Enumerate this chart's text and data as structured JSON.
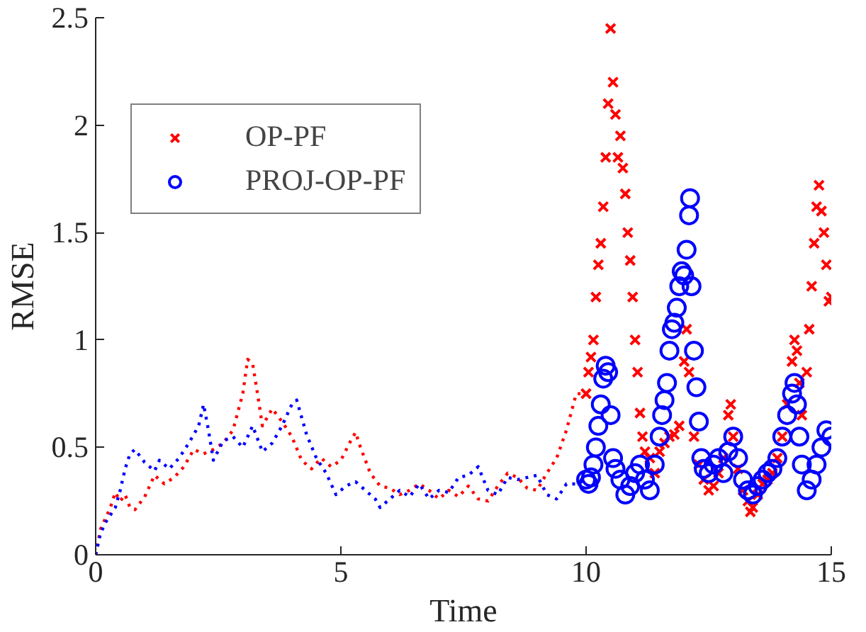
{
  "chart_data": {
    "type": "scatter",
    "xlabel": "Time",
    "ylabel": "RMSE",
    "xlim": [
      0,
      15
    ],
    "ylim": [
      0,
      2.5
    ],
    "xticks": [
      0,
      5,
      10,
      15
    ],
    "yticks": [
      0,
      0.5,
      1,
      1.5,
      2,
      2.5
    ],
    "grid": false,
    "legend": "top left",
    "series": [
      {
        "type": "line",
        "line_style": "dotted",
        "color": "#ff0000",
        "x": [
          0,
          0.1,
          0.2,
          0.3,
          0.4,
          0.5,
          0.6,
          0.7,
          0.8,
          1.0,
          1.2,
          1.4,
          1.6,
          1.8,
          2.0,
          2.2,
          2.4,
          2.6,
          2.8,
          3.0,
          3.1,
          3.2,
          3.3,
          3.4,
          3.6,
          3.8,
          4.0,
          4.2,
          4.4,
          4.6,
          4.8,
          5.0,
          5.2,
          5.3,
          5.4,
          5.6,
          5.8,
          6.0,
          6.2,
          6.4,
          6.6,
          6.8,
          7.0,
          7.2,
          7.4,
          7.6,
          7.8,
          8.0,
          8.2,
          8.4,
          8.6,
          8.8,
          9.0,
          9.2,
          9.4,
          9.6,
          9.8,
          10.0
        ],
        "values": [
          0,
          0.12,
          0.17,
          0.22,
          0.29,
          0.25,
          0.28,
          0.22,
          0.21,
          0.27,
          0.37,
          0.33,
          0.36,
          0.41,
          0.49,
          0.47,
          0.49,
          0.52,
          0.58,
          0.75,
          0.91,
          0.89,
          0.75,
          0.6,
          0.68,
          0.62,
          0.55,
          0.44,
          0.4,
          0.45,
          0.41,
          0.44,
          0.53,
          0.57,
          0.5,
          0.38,
          0.32,
          0.31,
          0.28,
          0.3,
          0.33,
          0.3,
          0.26,
          0.3,
          0.27,
          0.32,
          0.26,
          0.25,
          0.32,
          0.38,
          0.36,
          0.31,
          0.3,
          0.38,
          0.45,
          0.58,
          0.75,
          0.75
        ]
      },
      {
        "type": "line",
        "line_style": "dotted",
        "color": "#0000ff",
        "x": [
          0,
          0.1,
          0.2,
          0.4,
          0.5,
          0.6,
          0.7,
          0.8,
          1.0,
          1.2,
          1.3,
          1.5,
          1.7,
          1.9,
          2.1,
          2.2,
          2.3,
          2.4,
          2.6,
          2.8,
          3.0,
          3.2,
          3.4,
          3.6,
          3.8,
          4.0,
          4.1,
          4.3,
          4.5,
          4.7,
          4.9,
          5.1,
          5.3,
          5.5,
          5.7,
          5.8,
          6.0,
          6.2,
          6.4,
          6.6,
          6.8,
          7.0,
          7.2,
          7.4,
          7.6,
          7.8,
          8.0,
          8.2,
          8.4,
          8.6,
          8.8,
          9.0,
          9.2,
          9.4,
          9.6,
          9.8,
          10.0
        ],
        "values": [
          0,
          0.1,
          0.15,
          0.22,
          0.3,
          0.4,
          0.47,
          0.49,
          0.43,
          0.39,
          0.44,
          0.4,
          0.45,
          0.52,
          0.6,
          0.7,
          0.58,
          0.44,
          0.53,
          0.55,
          0.5,
          0.6,
          0.48,
          0.52,
          0.6,
          0.7,
          0.72,
          0.56,
          0.45,
          0.38,
          0.28,
          0.32,
          0.34,
          0.3,
          0.26,
          0.22,
          0.26,
          0.3,
          0.27,
          0.33,
          0.26,
          0.3,
          0.29,
          0.36,
          0.37,
          0.41,
          0.3,
          0.28,
          0.36,
          0.35,
          0.36,
          0.37,
          0.28,
          0.26,
          0.33,
          0.33,
          0.35
        ]
      },
      {
        "name": "OP-PF",
        "marker": "cross",
        "color": "#ff0000",
        "x": [
          10.0,
          10.05,
          10.1,
          10.15,
          10.2,
          10.25,
          10.3,
          10.35,
          10.4,
          10.45,
          10.5,
          10.55,
          10.6,
          10.65,
          10.7,
          10.75,
          10.8,
          10.85,
          10.9,
          10.95,
          11.0,
          11.05,
          11.1,
          11.15,
          11.2,
          11.3,
          11.4,
          11.5,
          11.6,
          11.7,
          11.8,
          11.9,
          12.0,
          12.05,
          12.1,
          12.2,
          12.3,
          12.4,
          12.5,
          12.6,
          12.7,
          12.8,
          12.9,
          12.95,
          13.0,
          13.1,
          13.2,
          13.3,
          13.35,
          13.4,
          13.5,
          13.6,
          13.7,
          13.8,
          13.9,
          14.0,
          14.1,
          14.2,
          14.25,
          14.3,
          14.35,
          14.4,
          14.5,
          14.55,
          14.6,
          14.65,
          14.7,
          14.75,
          14.8,
          14.85,
          14.9,
          14.95,
          15.0
        ],
        "values": [
          0.75,
          0.85,
          0.92,
          1.0,
          1.2,
          1.35,
          1.45,
          1.62,
          1.85,
          2.1,
          2.45,
          2.2,
          2.05,
          1.85,
          1.95,
          1.8,
          1.68,
          1.5,
          1.37,
          1.2,
          1.0,
          0.85,
          0.66,
          0.55,
          0.48,
          0.45,
          0.38,
          0.48,
          0.52,
          0.55,
          0.56,
          0.6,
          0.9,
          1.05,
          0.85,
          0.55,
          0.42,
          0.35,
          0.3,
          0.32,
          0.38,
          0.45,
          0.65,
          0.7,
          0.55,
          0.4,
          0.3,
          0.25,
          0.2,
          0.22,
          0.28,
          0.33,
          0.35,
          0.38,
          0.45,
          0.55,
          0.7,
          0.9,
          1.0,
          0.95,
          0.8,
          0.65,
          0.85,
          1.05,
          1.25,
          1.45,
          1.62,
          1.72,
          1.6,
          1.5,
          1.35,
          1.18,
          1.2
        ]
      },
      {
        "name": "PROJ-OP-PF",
        "marker": "circle",
        "color": "#0000ff",
        "x": [
          10.0,
          10.05,
          10.1,
          10.15,
          10.2,
          10.25,
          10.3,
          10.35,
          10.4,
          10.45,
          10.5,
          10.55,
          10.6,
          10.7,
          10.8,
          10.9,
          11.0,
          11.1,
          11.2,
          11.3,
          11.4,
          11.5,
          11.55,
          11.6,
          11.65,
          11.7,
          11.75,
          11.8,
          11.85,
          11.9,
          11.95,
          12.0,
          12.05,
          12.1,
          12.12,
          12.15,
          12.2,
          12.25,
          12.3,
          12.35,
          12.4,
          12.5,
          12.6,
          12.7,
          12.8,
          12.9,
          13.0,
          13.1,
          13.2,
          13.3,
          13.4,
          13.5,
          13.6,
          13.7,
          13.8,
          13.9,
          14.0,
          14.1,
          14.2,
          14.25,
          14.3,
          14.35,
          14.4,
          14.5,
          14.6,
          14.7,
          14.8,
          14.9,
          15.0
        ],
        "values": [
          0.35,
          0.33,
          0.36,
          0.42,
          0.5,
          0.6,
          0.7,
          0.82,
          0.88,
          0.85,
          0.65,
          0.45,
          0.4,
          0.35,
          0.28,
          0.32,
          0.38,
          0.42,
          0.35,
          0.3,
          0.42,
          0.55,
          0.65,
          0.72,
          0.8,
          0.95,
          1.05,
          1.08,
          1.15,
          1.25,
          1.32,
          1.3,
          1.42,
          1.58,
          1.66,
          1.25,
          0.95,
          0.78,
          0.62,
          0.45,
          0.4,
          0.38,
          0.42,
          0.45,
          0.38,
          0.48,
          0.55,
          0.45,
          0.35,
          0.3,
          0.28,
          0.32,
          0.35,
          0.38,
          0.4,
          0.45,
          0.55,
          0.65,
          0.75,
          0.8,
          0.7,
          0.55,
          0.42,
          0.3,
          0.35,
          0.42,
          0.5,
          0.58,
          0.55
        ]
      }
    ]
  }
}
